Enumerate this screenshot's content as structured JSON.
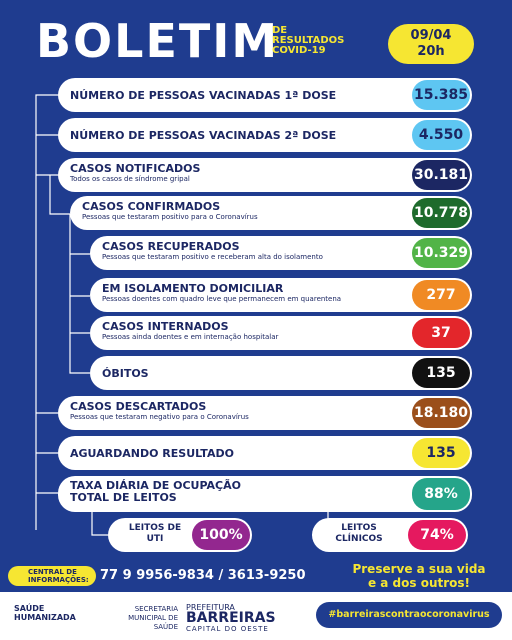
{
  "header": {
    "title": "BOLETIM",
    "subtitle": [
      "DE",
      "RESULTADOS",
      "COVID-19"
    ],
    "date": "09/04",
    "time": "20h"
  },
  "rows": [
    {
      "title": "NÚMERO DE PESSOAS VACINADAS 1ª DOSE",
      "value": "15.385",
      "color": "#5ec6f2"
    },
    {
      "title": "NÚMERO DE PESSOAS VACINADAS 2ª DOSE",
      "value": "4.550",
      "color": "#5ec6f2"
    },
    {
      "title": "CASOS NOTIFICADOS",
      "subtitle": "Todos os casos de síndrome gripal",
      "value": "30.181",
      "color": "#1c2763"
    },
    {
      "title": "CASOS CONFIRMADOS",
      "subtitle": "Pessoas que testaram positivo para o Coronavírus",
      "value": "10.778",
      "color": "#1e6b2c"
    },
    {
      "title": "CASOS RECUPERADOS",
      "subtitle": "Pessoas que testaram positivo e receberam alta do isolamento",
      "value": "10.329",
      "color": "#52b447"
    },
    {
      "title": "EM ISOLAMENTO DOMICILIAR",
      "subtitle": "Pessoas doentes com quadro leve que permanecem em quarentena",
      "value": "277",
      "color": "#f08a24"
    },
    {
      "title": "CASOS INTERNADOS",
      "subtitle": "Pessoas ainda doentes e em internação hospitalar",
      "value": "37",
      "color": "#e3262b"
    },
    {
      "title": "ÓBITOS",
      "value": "135",
      "color": "#111111"
    },
    {
      "title": "CASOS DESCARTADOS",
      "subtitle": "Pessoas que testaram negativo para o Coronavírus",
      "value": "18.180",
      "color": "#9b4f1b"
    },
    {
      "title": "AGUARDANDO RESULTADO",
      "value": "135",
      "color": "#f6e632"
    },
    {
      "title": "TAXA DIÁRIA DE OCUPAÇÃO TOTAL DE LEITOS",
      "value": "88%",
      "color": "#25a58a"
    }
  ],
  "beds": [
    {
      "title": "LEITOS DE UTI",
      "value": "100%",
      "color": "#93278f"
    },
    {
      "title": "LEITOS CLÍNICOS",
      "value": "74%",
      "color": "#e5195f"
    }
  ],
  "footer": {
    "contact_label": "CENTRAL DE INFORMAÇÕES:",
    "phone": "77 9 9956-9834 / 3613-9250",
    "slogan": [
      "Preserve a sua vida",
      "e a dos outros!"
    ],
    "logos": [
      "SAÚDE HUMANIZADA",
      "SECRETARIA MUNICIPAL DE SAÚDE",
      "PREFEITURA",
      "BARREIRAS",
      "CAPITAL DO OESTE"
    ],
    "hashtag": "#barreirascontraocoronavirus"
  }
}
